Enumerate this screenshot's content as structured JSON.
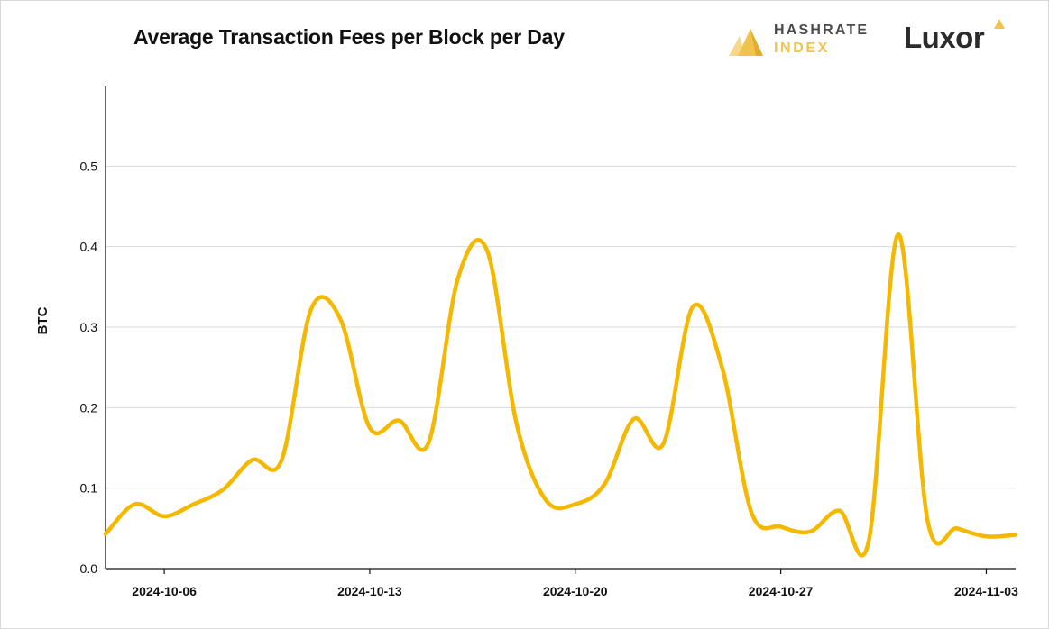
{
  "header": {
    "title": "Average Transaction Fees per Block per Day",
    "logo_hashrate_line1": "HASHRATE",
    "logo_hashrate_line2": "INDEX",
    "logo_luxor": "Luxor"
  },
  "chart_data": {
    "type": "line",
    "title": "Average Transaction Fees per Block per Day",
    "xlabel": "",
    "ylabel": "BTC",
    "ylim": [
      0,
      0.6
    ],
    "yticks": [
      0.0,
      0.1,
      0.2,
      0.3,
      0.4,
      0.5
    ],
    "ytick_labels": [
      "0.0",
      "0.1",
      "0.2",
      "0.3",
      "0.4",
      "0.5"
    ],
    "xlim": [
      "2024-10-04",
      "2024-11-04"
    ],
    "xticks": [
      "2024-10-06",
      "2024-10-13",
      "2024-10-20",
      "2024-10-27",
      "2024-11-03"
    ],
    "grid": "horizontal",
    "line_color": "#f5b800",
    "series": [
      {
        "name": "",
        "x": [
          "2024-10-04",
          "2024-10-05",
          "2024-10-06",
          "2024-10-07",
          "2024-10-08",
          "2024-10-09",
          "2024-10-10",
          "2024-10-11",
          "2024-10-12",
          "2024-10-13",
          "2024-10-14",
          "2024-10-15",
          "2024-10-16",
          "2024-10-17",
          "2024-10-18",
          "2024-10-19",
          "2024-10-20",
          "2024-10-21",
          "2024-10-22",
          "2024-10-23",
          "2024-10-24",
          "2024-10-25",
          "2024-10-26",
          "2024-10-27",
          "2024-10-28",
          "2024-10-29",
          "2024-10-30",
          "2024-10-31",
          "2024-11-01",
          "2024-11-02",
          "2024-11-03",
          "2024-11-04"
        ],
        "values": [
          0.043,
          0.08,
          0.065,
          0.08,
          0.098,
          0.135,
          0.135,
          0.322,
          0.31,
          0.175,
          0.184,
          0.156,
          0.36,
          0.395,
          0.18,
          0.085,
          0.08,
          0.105,
          0.186,
          0.155,
          0.325,
          0.25,
          0.07,
          0.052,
          0.046,
          0.072,
          0.035,
          0.415,
          0.06,
          0.05,
          0.04,
          0.042
        ]
      }
    ]
  }
}
